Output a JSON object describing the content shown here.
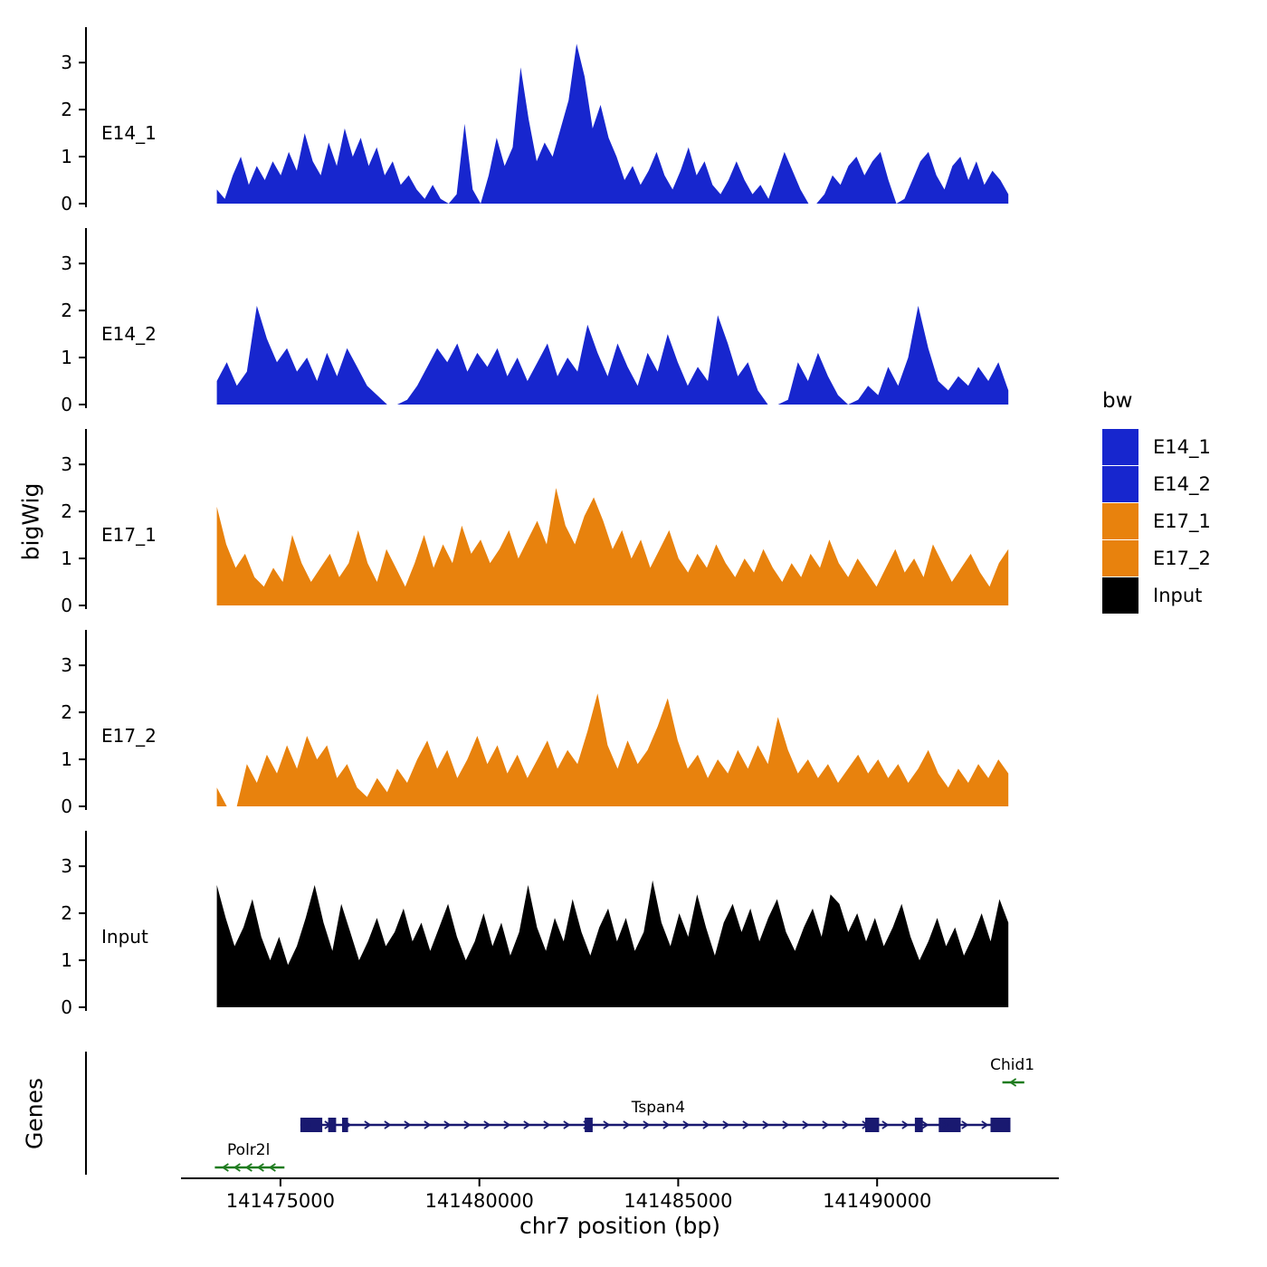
{
  "figure": {
    "ylabel_tracks": "bigWig",
    "ylabel_genes": "Genes",
    "xlabel": "chr7 position (bp)"
  },
  "legend": {
    "title": "bw",
    "items": [
      {
        "label": "E14_1",
        "color": "#1726CE"
      },
      {
        "label": "E14_2",
        "color": "#1726CE"
      },
      {
        "label": "E17_1",
        "color": "#E8820D"
      },
      {
        "label": "E17_2",
        "color": "#E8820D"
      },
      {
        "label": "Input",
        "color": "#000000"
      }
    ]
  },
  "chart_data": {
    "type": "area",
    "title": "",
    "xlabel": "chr7 position (bp)",
    "ylabel": "bigWig",
    "x_range": [
      141472500,
      141494000
    ],
    "x_ticks": [
      141475000,
      141480000,
      141485000,
      141490000
    ],
    "y_ticks": [
      0,
      1,
      2,
      3
    ],
    "ylim": [
      0,
      3.6
    ],
    "grid": false,
    "legend_position": "right",
    "tracks": [
      {
        "label": "E14_1",
        "color": "#1726CE",
        "x_start": 141473400,
        "x_end": 141493300,
        "values": [
          0.3,
          0.1,
          0.6,
          1.0,
          0.4,
          0.8,
          0.5,
          0.9,
          0.6,
          1.1,
          0.7,
          1.5,
          0.9,
          0.6,
          1.3,
          0.8,
          1.6,
          1.0,
          1.4,
          0.8,
          1.2,
          0.6,
          0.9,
          0.4,
          0.6,
          0.3,
          0.1,
          0.4,
          0.1,
          0,
          0.2,
          1.7,
          0.3,
          0,
          0.6,
          1.4,
          0.8,
          1.2,
          2.9,
          1.8,
          0.9,
          1.3,
          1.0,
          1.6,
          2.2,
          3.4,
          2.7,
          1.6,
          2.1,
          1.4,
          1.0,
          0.5,
          0.8,
          0.4,
          0.7,
          1.1,
          0.6,
          0.3,
          0.7,
          1.2,
          0.6,
          0.9,
          0.4,
          0.2,
          0.5,
          0.9,
          0.5,
          0.2,
          0.4,
          0.1,
          0.6,
          1.1,
          0.7,
          0.3,
          0,
          0,
          0.2,
          0.6,
          0.4,
          0.8,
          1.0,
          0.6,
          0.9,
          1.1,
          0.5,
          0,
          0.1,
          0.5,
          0.9,
          1.1,
          0.6,
          0.3,
          0.8,
          1.0,
          0.5,
          0.9,
          0.4,
          0.7,
          0.5,
          0.2
        ]
      },
      {
        "label": "E14_2",
        "color": "#1726CE",
        "x_start": 141473400,
        "x_end": 141493300,
        "values": [
          0.5,
          0.9,
          0.4,
          0.7,
          2.1,
          1.4,
          0.9,
          1.2,
          0.7,
          1.0,
          0.5,
          1.1,
          0.6,
          1.2,
          0.8,
          0.4,
          0.2,
          0,
          0,
          0.1,
          0.4,
          0.8,
          1.2,
          0.9,
          1.3,
          0.7,
          1.1,
          0.8,
          1.2,
          0.6,
          1.0,
          0.5,
          0.9,
          1.3,
          0.6,
          1.0,
          0.7,
          1.7,
          1.1,
          0.6,
          1.3,
          0.8,
          0.4,
          1.1,
          0.7,
          1.5,
          0.9,
          0.4,
          0.8,
          0.5,
          1.9,
          1.3,
          0.6,
          0.9,
          0.3,
          0,
          0,
          0.1,
          0.9,
          0.5,
          1.1,
          0.6,
          0.2,
          0,
          0.1,
          0.4,
          0.2,
          0.8,
          0.4,
          1.0,
          2.1,
          1.2,
          0.5,
          0.3,
          0.6,
          0.4,
          0.8,
          0.5,
          0.9,
          0.3
        ]
      },
      {
        "label": "E17_1",
        "color": "#E8820D",
        "x_start": 141473400,
        "x_end": 141493300,
        "values": [
          2.1,
          1.3,
          0.8,
          1.1,
          0.6,
          0.4,
          0.8,
          0.5,
          1.5,
          0.9,
          0.5,
          0.8,
          1.1,
          0.6,
          0.9,
          1.6,
          0.9,
          0.5,
          1.2,
          0.8,
          0.4,
          0.9,
          1.5,
          0.8,
          1.3,
          0.9,
          1.7,
          1.1,
          1.4,
          0.9,
          1.2,
          1.6,
          1.0,
          1.4,
          1.8,
          1.3,
          2.5,
          1.7,
          1.3,
          1.9,
          2.3,
          1.8,
          1.2,
          1.6,
          1.0,
          1.4,
          0.8,
          1.2,
          1.6,
          1.0,
          0.7,
          1.1,
          0.8,
          1.3,
          0.9,
          0.6,
          1.0,
          0.7,
          1.2,
          0.8,
          0.5,
          0.9,
          0.6,
          1.1,
          0.8,
          1.4,
          0.9,
          0.6,
          1.0,
          0.7,
          0.4,
          0.8,
          1.2,
          0.7,
          1.0,
          0.6,
          1.3,
          0.9,
          0.5,
          0.8,
          1.1,
          0.7,
          0.4,
          0.9,
          1.2
        ]
      },
      {
        "label": "E17_2",
        "color": "#E8820D",
        "x_start": 141473400,
        "x_end": 141493300,
        "values": [
          0.4,
          0,
          0,
          0.9,
          0.5,
          1.1,
          0.7,
          1.3,
          0.8,
          1.5,
          1.0,
          1.3,
          0.6,
          0.9,
          0.4,
          0.2,
          0.6,
          0.3,
          0.8,
          0.5,
          1.0,
          1.4,
          0.8,
          1.2,
          0.6,
          1.0,
          1.5,
          0.9,
          1.3,
          0.7,
          1.1,
          0.6,
          1.0,
          1.4,
          0.8,
          1.2,
          0.9,
          1.6,
          2.4,
          1.3,
          0.8,
          1.4,
          0.9,
          1.2,
          1.7,
          2.3,
          1.4,
          0.8,
          1.1,
          0.6,
          1.0,
          0.7,
          1.2,
          0.8,
          1.3,
          0.9,
          1.9,
          1.2,
          0.7,
          1.0,
          0.6,
          0.9,
          0.5,
          0.8,
          1.1,
          0.7,
          1.0,
          0.6,
          0.9,
          0.5,
          0.8,
          1.2,
          0.7,
          0.4,
          0.8,
          0.5,
          0.9,
          0.6,
          1.0,
          0.7
        ]
      },
      {
        "label": "Input",
        "color": "#000000",
        "x_start": 141473400,
        "x_end": 141493300,
        "values": [
          2.6,
          1.9,
          1.3,
          1.7,
          2.3,
          1.5,
          1.0,
          1.5,
          0.9,
          1.3,
          1.9,
          2.6,
          1.8,
          1.2,
          2.2,
          1.6,
          1.0,
          1.4,
          1.9,
          1.3,
          1.6,
          2.1,
          1.4,
          1.8,
          1.2,
          1.7,
          2.2,
          1.5,
          1.0,
          1.4,
          2.0,
          1.3,
          1.8,
          1.1,
          1.6,
          2.6,
          1.7,
          1.2,
          1.9,
          1.4,
          2.3,
          1.6,
          1.1,
          1.7,
          2.1,
          1.4,
          1.9,
          1.2,
          1.6,
          2.7,
          1.8,
          1.3,
          2.0,
          1.5,
          2.4,
          1.7,
          1.1,
          1.8,
          2.2,
          1.6,
          2.1,
          1.4,
          1.9,
          2.3,
          1.6,
          1.2,
          1.7,
          2.1,
          1.5,
          2.4,
          2.2,
          1.6,
          2.0,
          1.4,
          1.9,
          1.3,
          1.7,
          2.2,
          1.5,
          1.0,
          1.4,
          1.9,
          1.3,
          1.7,
          1.1,
          1.5,
          2.0,
          1.4,
          2.3,
          1.8
        ]
      }
    ],
    "genes": {
      "axis_label": "Genes",
      "items": [
        {
          "name": "Chid1",
          "color": "#1E7B1E",
          "strand": "-",
          "row": 0,
          "start": 141493150,
          "end": 141493700,
          "label_x": 141493400,
          "exons": []
        },
        {
          "name": "Tspan4",
          "color": "#191970",
          "strand": "+",
          "row": 1,
          "start": 141475500,
          "end": 141493350,
          "label_x": 141484500,
          "exons": [
            [
              141475500,
              141476050
            ],
            [
              141476200,
              141476400
            ],
            [
              141476550,
              141476700
            ],
            [
              141482650,
              141482850
            ],
            [
              141489700,
              141490050
            ],
            [
              141490950,
              141491150
            ],
            [
              141491550,
              141492100
            ],
            [
              141492850,
              141493350
            ]
          ]
        },
        {
          "name": "Polr2l",
          "color": "#1E7B1E",
          "strand": "-",
          "row": 2,
          "start": 141473350,
          "end": 141475100,
          "label_x": 141474200,
          "exons": []
        }
      ]
    }
  }
}
